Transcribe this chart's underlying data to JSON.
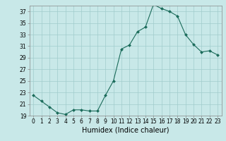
{
  "x": [
    0,
    1,
    2,
    3,
    4,
    5,
    6,
    7,
    8,
    9,
    10,
    11,
    12,
    13,
    14,
    15,
    16,
    17,
    18,
    19,
    20,
    21,
    22,
    23
  ],
  "y": [
    22.5,
    21.5,
    20.5,
    19.5,
    19.2,
    20.0,
    20.0,
    19.8,
    19.8,
    22.5,
    25.0,
    30.5,
    31.2,
    33.5,
    34.3,
    38.2,
    37.5,
    37.0,
    36.2,
    33.0,
    31.3,
    30.0,
    30.2,
    29.5
  ],
  "line_color": "#1a6b5a",
  "marker": "D",
  "marker_size": 2.0,
  "bg_color": "#c8e8e8",
  "grid_color": "#a0cccc",
  "xlabel": "Humidex (Indice chaleur)",
  "ylim": [
    19,
    38
  ],
  "xlim": [
    -0.5,
    23.5
  ],
  "yticks": [
    19,
    21,
    23,
    25,
    27,
    29,
    31,
    33,
    35,
    37
  ],
  "xticks": [
    0,
    1,
    2,
    3,
    4,
    5,
    6,
    7,
    8,
    9,
    10,
    11,
    12,
    13,
    14,
    15,
    16,
    17,
    18,
    19,
    20,
    21,
    22,
    23
  ],
  "tick_fontsize": 5.5,
  "xlabel_fontsize": 7.0,
  "linewidth": 0.8
}
